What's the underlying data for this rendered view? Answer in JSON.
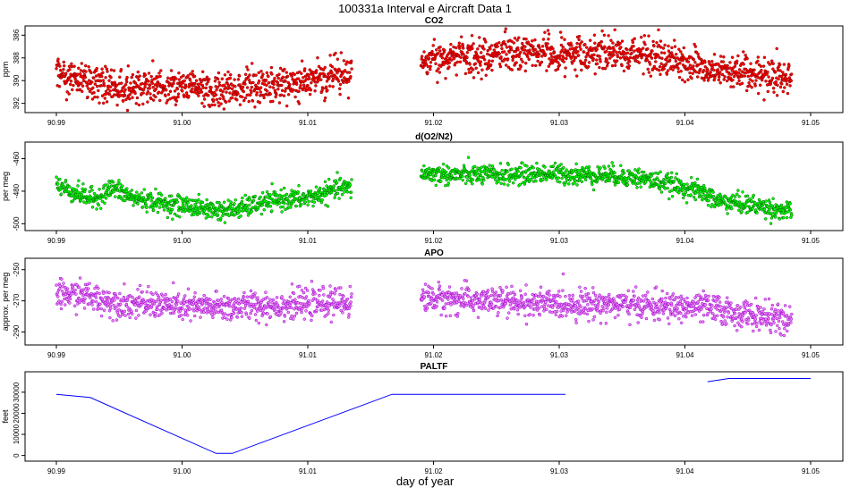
{
  "title": "100331a   Interval e Aircraft Data 1",
  "xlabel": "day of year",
  "chart_data": [
    {
      "type": "scatter",
      "title": "CO2",
      "xlabel": "day of year",
      "ylabel": "ppm",
      "xlim": [
        90.99,
        91.05
      ],
      "ylim": [
        392.5,
        385.5
      ],
      "x_ticks": [
        "90.99",
        "91.00",
        "91.01",
        "91.02",
        "91.03",
        "91.04",
        "91.05"
      ],
      "y_ticks": [
        "392",
        "390",
        "388",
        "386"
      ],
      "colors": {
        "fill": "#ff0000",
        "stroke": "#8b0000"
      },
      "segments": [
        {
          "x": [
            90.99,
            90.9925,
            90.995,
            90.9975,
            91.0,
            91.0025,
            91.005,
            91.0075,
            91.01,
            91.0125,
            91.0135
          ],
          "y": [
            389.2,
            390.0,
            390.6,
            390.7,
            390.6,
            390.8,
            390.6,
            390.3,
            390.0,
            389.5,
            389.3
          ]
        },
        {
          "x": [
            91.019,
            91.0215,
            91.024,
            91.0265,
            91.029,
            91.0315,
            91.034,
            91.0365,
            91.039,
            91.0415,
            91.044,
            91.0465,
            91.0485
          ],
          "y": [
            388.1,
            387.8,
            387.9,
            387.6,
            387.5,
            387.5,
            387.4,
            387.8,
            388.2,
            389.0,
            389.3,
            389.6,
            389.9
          ]
        }
      ]
    },
    {
      "type": "scatter",
      "title": "d(O2/N2)",
      "xlabel": "day of year",
      "ylabel": "per meg",
      "xlim": [
        90.99,
        91.05
      ],
      "ylim": [
        -502,
        -452
      ],
      "x_ticks": [
        "90.99",
        "91.00",
        "91.01",
        "91.02",
        "91.03",
        "91.04",
        "91.05"
      ],
      "y_ticks": [
        "-460",
        "-480",
        "-500"
      ],
      "colors": {
        "fill": "#00ff00",
        "stroke": "#006400"
      },
      "segments": [
        {
          "x": [
            90.99,
            90.9915,
            90.993,
            90.9945,
            90.996,
            90.9975,
            90.999,
            91.0005,
            91.002,
            91.0035,
            91.005,
            91.0065,
            91.008,
            91.0095,
            91.011,
            91.0125,
            91.0135
          ],
          "y": [
            -476,
            -481,
            -485,
            -478,
            -484,
            -486,
            -488,
            -489,
            -491,
            -492,
            -490,
            -487,
            -485,
            -485,
            -482,
            -478,
            -478
          ]
        },
        {
          "x": [
            91.019,
            91.0215,
            91.024,
            91.0265,
            91.029,
            91.0315,
            91.034,
            91.0365,
            91.039,
            91.0415,
            91.0425,
            91.044,
            91.0465,
            91.0485
          ],
          "y": [
            -469,
            -470,
            -470,
            -470,
            -469,
            -470,
            -470,
            -472,
            -476,
            -481,
            -486,
            -487,
            -490,
            -493
          ]
        }
      ]
    },
    {
      "type": "scatter",
      "title": "APO",
      "xlabel": "day of year",
      "ylabel": "approx. per meg",
      "xlim": [
        90.99,
        91.05
      ],
      "ylim": [
        -296,
        -245
      ],
      "x_ticks": [
        "90.99",
        "91.00",
        "91.01",
        "91.02",
        "91.03",
        "91.04",
        "91.05"
      ],
      "y_ticks": [
        "-250",
        "-270",
        "-290"
      ],
      "colors": {
        "fill": "#ee82ee",
        "stroke": "#9400d3"
      },
      "segments": [
        {
          "x": [
            90.99,
            90.992,
            90.994,
            90.996,
            90.998,
            91.0,
            91.002,
            91.004,
            91.006,
            91.008,
            91.01,
            91.012,
            91.0135
          ],
          "y": [
            -266,
            -266,
            -270,
            -272,
            -272,
            -274,
            -274,
            -274,
            -273,
            -273,
            -272,
            -271,
            -271
          ]
        },
        {
          "x": [
            91.019,
            91.0215,
            91.024,
            91.0265,
            91.029,
            91.0315,
            91.034,
            91.0365,
            91.039,
            91.0415,
            91.044,
            91.0465,
            91.0485
          ],
          "y": [
            -268,
            -269,
            -270,
            -271,
            -272,
            -272,
            -272,
            -273,
            -274,
            -274,
            -278,
            -280,
            -284
          ]
        }
      ]
    },
    {
      "type": "line",
      "title": "PALTF",
      "xlabel": "day of year",
      "ylabel": "feet",
      "xlim": [
        90.99,
        91.05
      ],
      "ylim": [
        -1000,
        38000
      ],
      "x_ticks": [
        "90.99",
        "91.00",
        "91.01",
        "91.02",
        "91.03",
        "91.04",
        "91.05"
      ],
      "y_ticks": [
        "0",
        "10000",
        "20000",
        "30000"
      ],
      "colors": {
        "line": "#0000ff"
      },
      "segments": [
        {
          "x": [
            90.99,
            90.9927,
            91.0027,
            91.004,
            91.0167,
            91.0305
          ],
          "y": [
            29000,
            27500,
            1000,
            1000,
            29000,
            29000
          ]
        },
        {
          "x": [
            91.0418,
            91.0435,
            91.05
          ],
          "y": [
            35000,
            36500,
            36500
          ]
        }
      ]
    }
  ]
}
